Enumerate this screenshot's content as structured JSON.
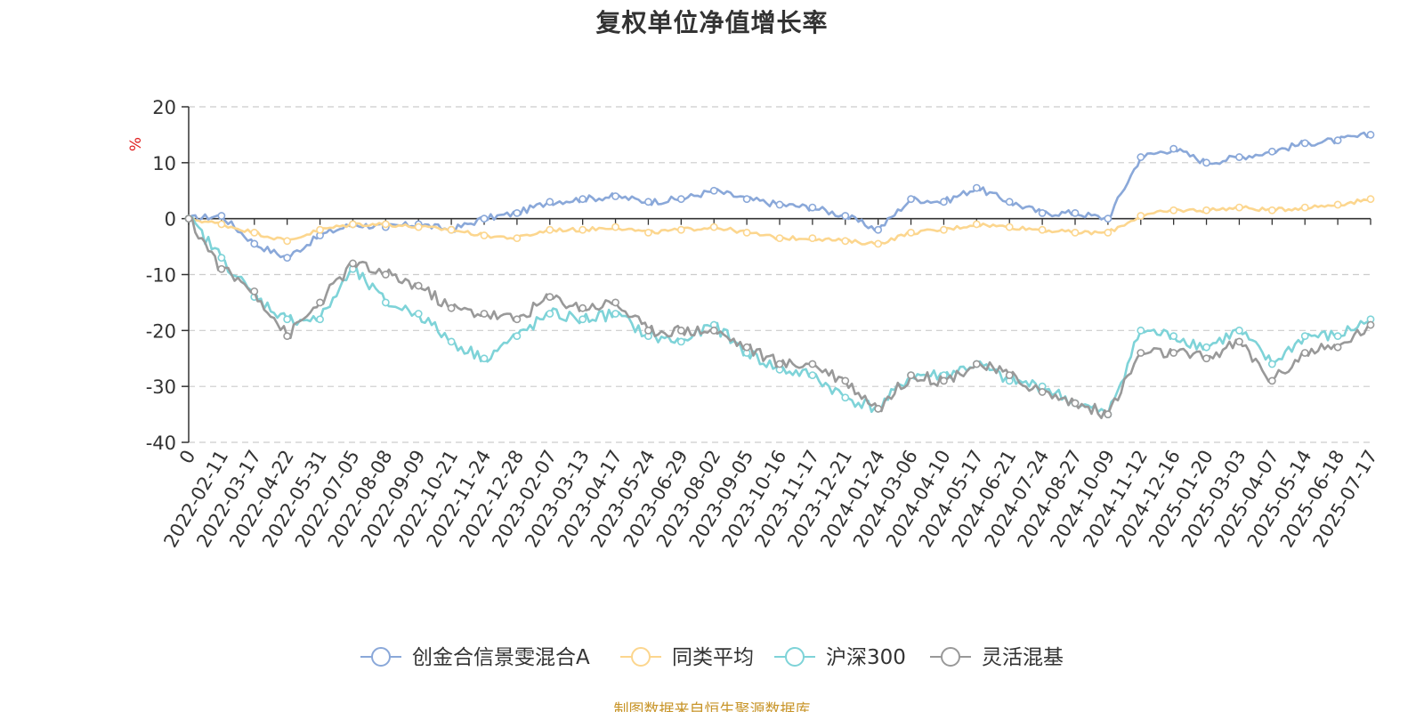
{
  "title": "复权单位净值增长率",
  "source_note": "制图数据来自恒生聚源数据库",
  "chart_data": {
    "type": "line",
    "title": "复权单位净值增长率",
    "ylabel": "%",
    "ylim": [
      -40,
      20
    ],
    "yticks": [
      20,
      10,
      0,
      -10,
      -20,
      -30,
      -40
    ],
    "grid": true,
    "legend_position": "bottom",
    "x_labels": [
      "0",
      "2022-02-11",
      "2022-03-17",
      "2022-04-22",
      "2022-05-31",
      "2022-07-05",
      "2022-08-08",
      "2022-09-09",
      "2022-10-21",
      "2022-11-24",
      "2022-12-28",
      "2023-02-07",
      "2023-03-13",
      "2023-04-17",
      "2023-05-24",
      "2023-06-29",
      "2023-08-02",
      "2023-09-05",
      "2023-10-16",
      "2023-11-17",
      "2023-12-21",
      "2024-01-24",
      "2024-03-06",
      "2024-04-10",
      "2024-05-17",
      "2024-06-21",
      "2024-07-24",
      "2024-08-27",
      "2024-10-09",
      "2024-11-12",
      "2024-12-16",
      "2025-01-20",
      "2025-03-03",
      "2025-04-07",
      "2025-05-14",
      "2025-06-18",
      "2025-07-17"
    ],
    "series": [
      {
        "name": "创金合信景雯混合A",
        "color": "#8aa8d9",
        "values": [
          0,
          0.5,
          -4.5,
          -7,
          -3,
          -1,
          -1.5,
          -1,
          -2,
          0,
          1,
          3,
          3.5,
          4,
          3,
          3.5,
          5,
          3.5,
          2.5,
          2,
          0.5,
          -2,
          3.5,
          3,
          5.5,
          3,
          1,
          1,
          0,
          11,
          12.5,
          10,
          11,
          12,
          13.5,
          14,
          15
        ]
      },
      {
        "name": "同类平均",
        "color": "#fcd68e",
        "values": [
          0,
          -1,
          -2.5,
          -4,
          -2,
          -1,
          -1,
          -1.5,
          -2,
          -3,
          -3.5,
          -2,
          -2,
          -1.5,
          -2.5,
          -2,
          -1.5,
          -2.5,
          -3.5,
          -3.5,
          -4,
          -4.5,
          -2.5,
          -2,
          -1,
          -1.5,
          -2,
          -2.5,
          -2.5,
          0.5,
          1.5,
          1.5,
          2,
          1.5,
          2,
          2.5,
          3.5
        ]
      },
      {
        "name": "沪深300",
        "color": "#7ed3d8",
        "values": [
          0,
          -7,
          -14,
          -18,
          -18,
          -9,
          -15,
          -17,
          -22,
          -25,
          -21,
          -17,
          -18,
          -17,
          -21,
          -22,
          -19,
          -24,
          -27,
          -28,
          -32,
          -34,
          -28,
          -28,
          -26,
          -29,
          -30,
          -33,
          -35,
          -20,
          -21,
          -23,
          -20,
          -26,
          -21,
          -21,
          -18
        ]
      },
      {
        "name": "灵活混基",
        "color": "#999999",
        "values": [
          0,
          -9,
          -13,
          -21,
          -15,
          -8,
          -10,
          -12,
          -16,
          -17,
          -18,
          -14,
          -16,
          -15,
          -20,
          -20,
          -20,
          -23,
          -26,
          -26,
          -29,
          -34,
          -28,
          -29,
          -26,
          -28,
          -31,
          -33,
          -35,
          -24,
          -24,
          -25,
          -22,
          -29,
          -24,
          -23,
          -19
        ]
      }
    ]
  }
}
